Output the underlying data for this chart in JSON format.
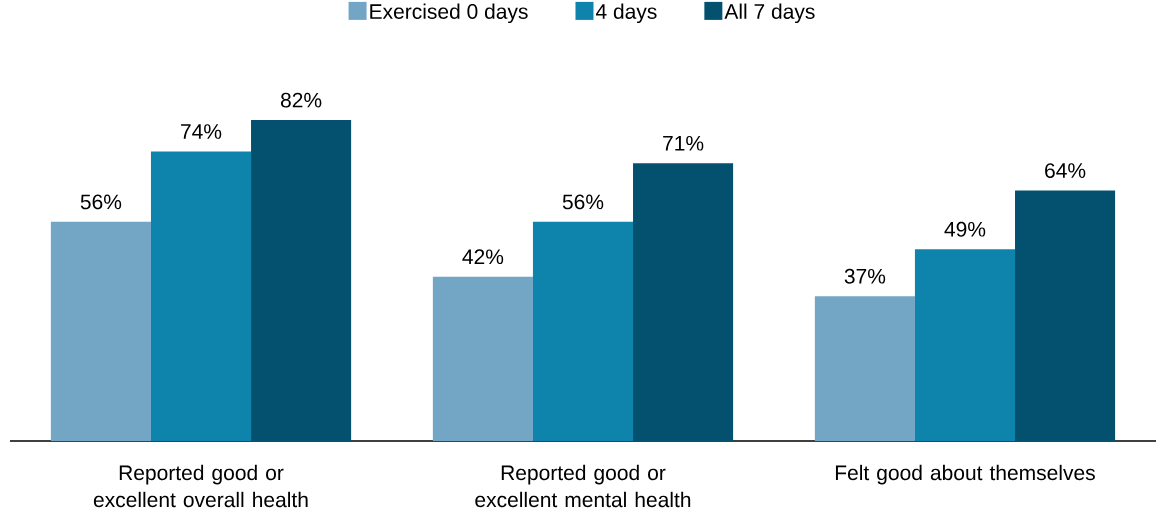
{
  "chart_data": {
    "type": "bar",
    "categories": [
      "Reported good or excellent overall health",
      "Reported good or excellent mental health",
      "Felt good about themselves"
    ],
    "series": [
      {
        "name": "Exercised 0 days",
        "color": "#73a5c4",
        "values": [
          56,
          42,
          37
        ],
        "value_labels": [
          "56%",
          "42%",
          "37%"
        ]
      },
      {
        "name": "4 days",
        "color": "#0e84ad",
        "values": [
          74,
          56,
          49
        ],
        "value_labels": [
          "74%",
          "56%",
          "49%"
        ]
      },
      {
        "name": "All 7 days",
        "color": "#03506f",
        "values": [
          82,
          71,
          64
        ],
        "value_labels": [
          "82%",
          "71%",
          "64%"
        ]
      }
    ],
    "tick_labels": "x",
    "legend": "top"
  }
}
